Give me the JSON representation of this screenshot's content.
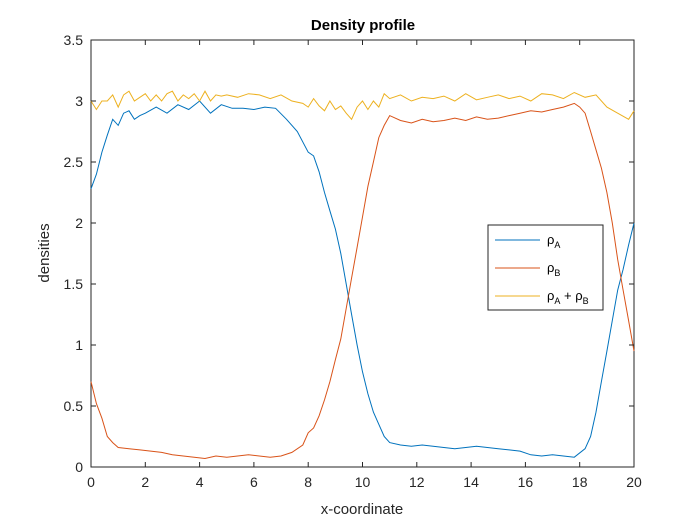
{
  "chart_data": {
    "type": "line",
    "title": "Density profile",
    "xlabel": "x-coordinate",
    "ylabel": "densities",
    "xlim": [
      0,
      20
    ],
    "ylim": [
      0,
      3.5
    ],
    "x_ticks": [
      "0",
      "2",
      "4",
      "6",
      "8",
      "10",
      "12",
      "14",
      "16",
      "18",
      "20"
    ],
    "y_ticks": [
      "0",
      "0.5",
      "1",
      "1.5",
      "2",
      "2.5",
      "3",
      "3.5"
    ],
    "grid": false,
    "legend_position": "right",
    "legend": [
      {
        "symbol": "ρ",
        "sub": "A",
        "mid": "",
        "symbol2": "",
        "sub2": ""
      },
      {
        "symbol": "ρ",
        "sub": "B",
        "mid": "",
        "symbol2": "",
        "sub2": ""
      },
      {
        "symbol": "ρ",
        "sub": "A",
        "mid": " + ",
        "symbol2": "ρ",
        "sub2": "B"
      }
    ],
    "colors": [
      "#0072BD",
      "#D95319",
      "#EDB120"
    ],
    "series": [
      {
        "x": [
          0,
          0.2,
          0.4,
          0.6,
          0.8,
          1.0,
          1.2,
          1.4,
          1.6,
          1.8,
          2.0,
          2.4,
          2.8,
          3.2,
          3.6,
          4.0,
          4.4,
          4.8,
          5.2,
          5.6,
          6.0,
          6.4,
          6.8,
          7.2,
          7.6,
          8.0,
          8.2,
          8.4,
          8.6,
          8.8,
          9.0,
          9.2,
          9.4,
          9.6,
          9.8,
          10.0,
          10.2,
          10.4,
          10.6,
          10.8,
          11.0,
          11.4,
          11.8,
          12.2,
          12.6,
          13.0,
          13.4,
          13.8,
          14.2,
          14.6,
          15.0,
          15.4,
          15.8,
          16.2,
          16.6,
          17.0,
          17.4,
          17.8,
          18.2,
          18.4,
          18.6,
          18.8,
          19.0,
          19.2,
          19.4,
          19.6,
          19.8,
          20.0
        ],
        "y": [
          2.28,
          2.4,
          2.58,
          2.72,
          2.85,
          2.8,
          2.9,
          2.92,
          2.85,
          2.88,
          2.9,
          2.95,
          2.9,
          2.97,
          2.93,
          3.0,
          2.9,
          2.97,
          2.94,
          2.94,
          2.93,
          2.95,
          2.94,
          2.85,
          2.75,
          2.58,
          2.55,
          2.42,
          2.25,
          2.1,
          1.95,
          1.75,
          1.5,
          1.25,
          1.0,
          0.78,
          0.6,
          0.45,
          0.35,
          0.25,
          0.2,
          0.18,
          0.17,
          0.18,
          0.17,
          0.16,
          0.15,
          0.16,
          0.17,
          0.16,
          0.15,
          0.14,
          0.13,
          0.1,
          0.09,
          0.1,
          0.09,
          0.08,
          0.15,
          0.25,
          0.45,
          0.7,
          0.95,
          1.2,
          1.45,
          1.62,
          1.82,
          2.0
        ]
      },
      {
        "x": [
          0,
          0.2,
          0.4,
          0.6,
          0.8,
          1.0,
          1.4,
          1.8,
          2.2,
          2.6,
          3.0,
          3.4,
          3.8,
          4.2,
          4.6,
          5.0,
          5.4,
          5.8,
          6.2,
          6.6,
          7.0,
          7.4,
          7.8,
          8.0,
          8.2,
          8.4,
          8.6,
          8.8,
          9.0,
          9.2,
          9.4,
          9.6,
          9.8,
          10.0,
          10.2,
          10.4,
          10.6,
          10.8,
          11.0,
          11.4,
          11.8,
          12.2,
          12.6,
          13.0,
          13.4,
          13.8,
          14.2,
          14.6,
          15.0,
          15.4,
          15.8,
          16.2,
          16.6,
          17.0,
          17.4,
          17.8,
          18.0,
          18.2,
          18.4,
          18.6,
          18.8,
          19.0,
          19.2,
          19.4,
          19.6,
          19.8,
          20.0
        ],
        "y": [
          0.7,
          0.52,
          0.4,
          0.25,
          0.2,
          0.16,
          0.15,
          0.14,
          0.13,
          0.12,
          0.1,
          0.09,
          0.08,
          0.07,
          0.09,
          0.08,
          0.09,
          0.1,
          0.09,
          0.08,
          0.09,
          0.12,
          0.18,
          0.28,
          0.32,
          0.42,
          0.55,
          0.7,
          0.88,
          1.05,
          1.3,
          1.55,
          1.8,
          2.05,
          2.3,
          2.5,
          2.7,
          2.8,
          2.88,
          2.84,
          2.82,
          2.85,
          2.83,
          2.84,
          2.86,
          2.84,
          2.87,
          2.85,
          2.86,
          2.88,
          2.9,
          2.92,
          2.91,
          2.93,
          2.95,
          2.98,
          2.95,
          2.9,
          2.75,
          2.6,
          2.45,
          2.25,
          2.0,
          1.7,
          1.45,
          1.2,
          0.95
        ]
      },
      {
        "x": [
          0,
          0.2,
          0.4,
          0.6,
          0.8,
          1.0,
          1.2,
          1.4,
          1.6,
          1.8,
          2.0,
          2.2,
          2.4,
          2.6,
          2.8,
          3.0,
          3.2,
          3.4,
          3.6,
          3.8,
          4.0,
          4.2,
          4.4,
          4.6,
          4.8,
          5.0,
          5.4,
          5.8,
          6.2,
          6.6,
          7.0,
          7.4,
          7.8,
          8.0,
          8.2,
          8.4,
          8.6,
          8.8,
          9.0,
          9.2,
          9.4,
          9.6,
          9.8,
          10.0,
          10.2,
          10.4,
          10.6,
          10.8,
          11.0,
          11.4,
          11.8,
          12.2,
          12.6,
          13.0,
          13.4,
          13.8,
          14.2,
          14.6,
          15.0,
          15.4,
          15.8,
          16.2,
          16.6,
          17.0,
          17.4,
          17.8,
          18.2,
          18.6,
          19.0,
          19.4,
          19.8,
          20.0
        ],
        "y": [
          3.0,
          2.93,
          3.0,
          3.0,
          3.05,
          2.95,
          3.05,
          3.08,
          3.0,
          3.03,
          3.06,
          3.0,
          3.05,
          3.0,
          3.06,
          3.08,
          3.0,
          3.05,
          3.02,
          3.06,
          3.0,
          3.08,
          3.0,
          3.05,
          3.04,
          3.05,
          3.03,
          3.06,
          3.05,
          3.02,
          3.05,
          3.0,
          2.98,
          2.95,
          3.02,
          2.96,
          2.92,
          3.0,
          2.93,
          2.96,
          2.9,
          2.85,
          2.95,
          3.0,
          2.93,
          3.0,
          2.95,
          3.06,
          3.02,
          3.05,
          3.0,
          3.03,
          3.02,
          3.04,
          3.0,
          3.06,
          3.01,
          3.03,
          3.05,
          3.02,
          3.04,
          3.0,
          3.06,
          3.05,
          3.02,
          3.07,
          3.03,
          3.05,
          2.95,
          2.9,
          2.85,
          2.92
        ]
      }
    ]
  }
}
